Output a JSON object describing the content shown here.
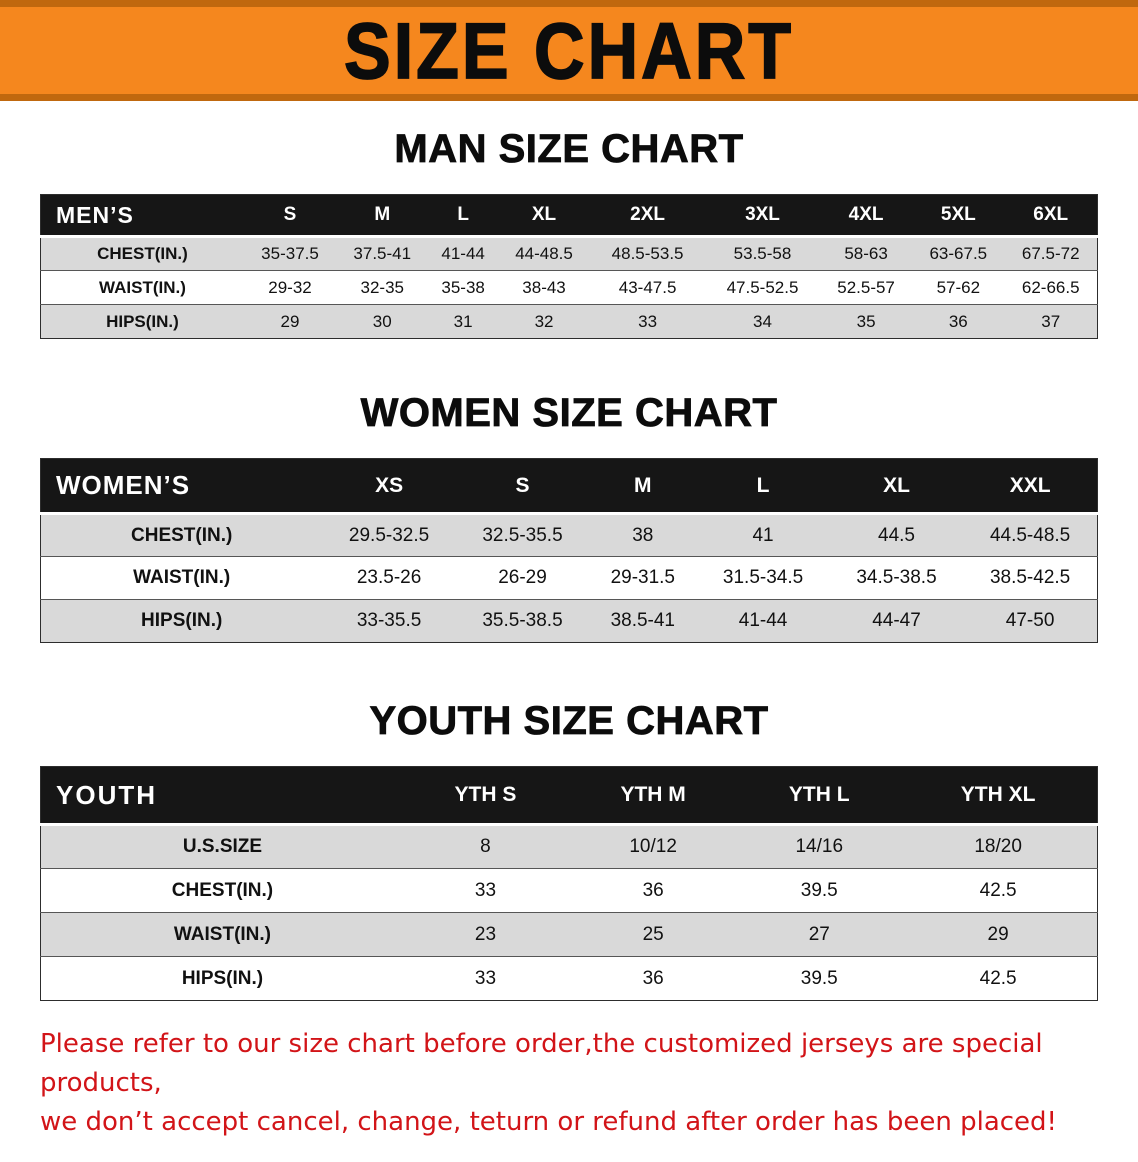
{
  "banner": {
    "title": "SIZE CHART"
  },
  "colors": {
    "banner_bg": "#f5871e",
    "banner_border": "#c0680e",
    "banner_text": "#0c0c0c",
    "header_bg": "#161616",
    "header_text": "#ffffff",
    "row_alt_bg": "#d9d9d9",
    "footer_text": "#d21418"
  },
  "sections": [
    {
      "heading": "MAN SIZE CHART",
      "header": [
        "MEN’S",
        "S",
        "M",
        "L",
        "XL",
        "2XL",
        "3XL",
        "4XL",
        "5XL",
        "6XL"
      ],
      "rows": [
        [
          "CHEST(IN.)",
          "35-37.5",
          "37.5-41",
          "41-44",
          "44-48.5",
          "48.5-53.5",
          "53.5-58",
          "58-63",
          "63-67.5",
          "67.5-72"
        ],
        [
          "WAIST(IN.)",
          "29-32",
          "32-35",
          "35-38",
          "38-43",
          "43-47.5",
          "47.5-52.5",
          "52.5-57",
          "57-62",
          "62-66.5"
        ],
        [
          "HIPS(IN.)",
          "29",
          "30",
          "31",
          "32",
          "33",
          "34",
          "35",
          "36",
          "37"
        ]
      ]
    },
    {
      "heading": "WOMEN SIZE CHART",
      "header": [
        "WOMEN’S",
        "XS",
        "S",
        "M",
        "L",
        "XL",
        "XXL"
      ],
      "rows": [
        [
          "CHEST(IN.)",
          "29.5-32.5",
          "32.5-35.5",
          "38",
          "41",
          "44.5",
          "44.5-48.5"
        ],
        [
          "WAIST(IN.)",
          "23.5-26",
          "26-29",
          "29-31.5",
          "31.5-34.5",
          "34.5-38.5",
          "38.5-42.5"
        ],
        [
          "HIPS(IN.)",
          "33-35.5",
          "35.5-38.5",
          "38.5-41",
          "41-44",
          "44-47",
          "47-50"
        ]
      ]
    },
    {
      "heading": "YOUTH SIZE CHART",
      "header": [
        "YOUTH",
        "YTH S",
        "YTH M",
        "YTH L",
        "YTH XL"
      ],
      "rows": [
        [
          "U.S.SIZE",
          "8",
          "10/12",
          "14/16",
          "18/20"
        ],
        [
          "CHEST(IN.)",
          "33",
          "36",
          "39.5",
          "42.5"
        ],
        [
          "WAIST(IN.)",
          "23",
          "25",
          "27",
          "29"
        ],
        [
          "HIPS(IN.)",
          "33",
          "36",
          "39.5",
          "42.5"
        ]
      ]
    }
  ],
  "footer": {
    "line1": "Please refer to our size chart before order,the customized jerseys are special products,",
    "line2": "we don’t accept cancel, change, teturn or refund after order has been placed!"
  }
}
